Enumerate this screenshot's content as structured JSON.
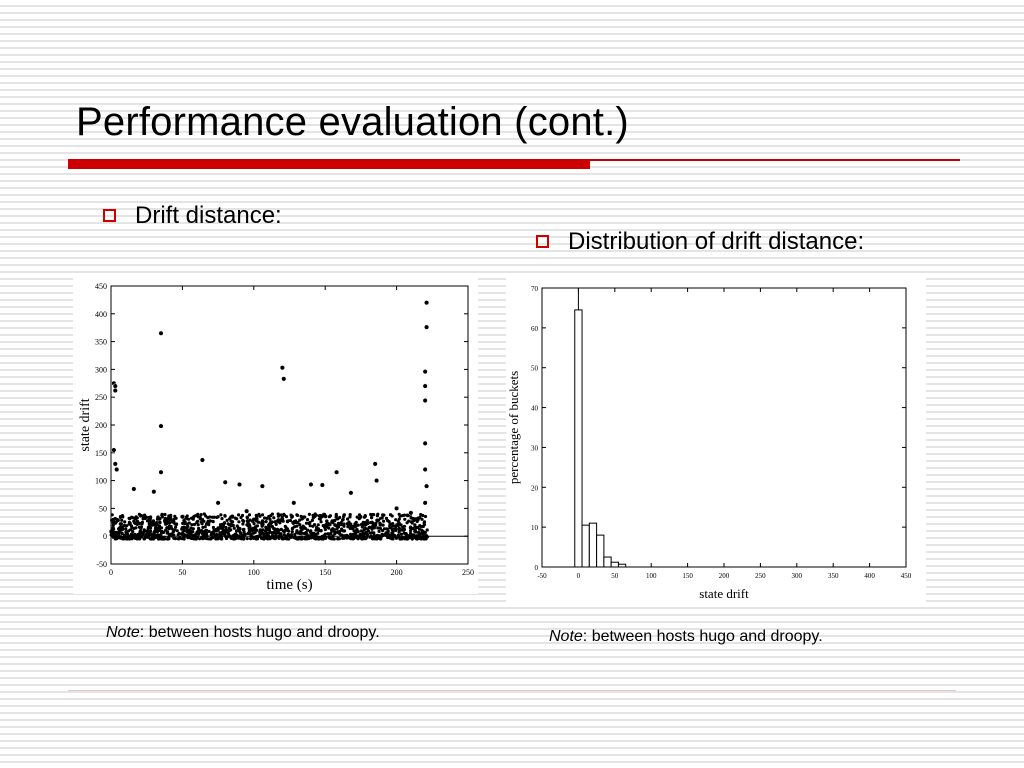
{
  "slide": {
    "title": "Performance evaluation (cont.)",
    "accent_color": "#cc0000",
    "bullets": [
      {
        "text": "Drift distance:"
      },
      {
        "text": "Distribution of drift distance:"
      }
    ],
    "notes": [
      {
        "label": "Note",
        "text": ": between hosts hugo and droopy."
      },
      {
        "label": "Note",
        "text": ": between hosts hugo and droopy."
      }
    ]
  },
  "chart_data": [
    {
      "type": "scatter",
      "xlabel": "time (s)",
      "ylabel": "state drift",
      "xlim": [
        0,
        250
      ],
      "ylim": [
        -50,
        450
      ],
      "xticks": [
        0,
        50,
        100,
        150,
        200,
        250
      ],
      "yticks": [
        -50,
        0,
        50,
        100,
        150,
        200,
        250,
        300,
        350,
        400,
        450
      ],
      "outliers": [
        {
          "x": 2,
          "y": 275
        },
        {
          "x": 3,
          "y": 270
        },
        {
          "x": 3,
          "y": 262
        },
        {
          "x": 2,
          "y": 155
        },
        {
          "x": 3,
          "y": 130
        },
        {
          "x": 4,
          "y": 120
        },
        {
          "x": 35,
          "y": 365
        },
        {
          "x": 35,
          "y": 198
        },
        {
          "x": 35,
          "y": 115
        },
        {
          "x": 64,
          "y": 137
        },
        {
          "x": 120,
          "y": 303
        },
        {
          "x": 121,
          "y": 283
        },
        {
          "x": 185,
          "y": 130
        },
        {
          "x": 186,
          "y": 100
        },
        {
          "x": 221,
          "y": 420
        },
        {
          "x": 221,
          "y": 376
        },
        {
          "x": 220,
          "y": 296
        },
        {
          "x": 220,
          "y": 270
        },
        {
          "x": 220,
          "y": 244
        },
        {
          "x": 220,
          "y": 167
        },
        {
          "x": 220,
          "y": 120
        },
        {
          "x": 221,
          "y": 90
        },
        {
          "x": 220,
          "y": 60
        },
        {
          "x": 16,
          "y": 85
        },
        {
          "x": 30,
          "y": 80
        },
        {
          "x": 80,
          "y": 97
        },
        {
          "x": 90,
          "y": 93
        },
        {
          "x": 106,
          "y": 90
        },
        {
          "x": 140,
          "y": 93
        },
        {
          "x": 148,
          "y": 92
        },
        {
          "x": 158,
          "y": 115
        },
        {
          "x": 168,
          "y": 78
        },
        {
          "x": 128,
          "y": 60
        },
        {
          "x": 200,
          "y": 50
        },
        {
          "x": 210,
          "y": 42
        },
        {
          "x": 50,
          "y": 35
        },
        {
          "x": 75,
          "y": 60
        },
        {
          "x": 95,
          "y": 45
        }
      ],
      "dense_band": {
        "x_range": [
          0,
          222
        ],
        "y_range": [
          -5,
          40
        ]
      }
    },
    {
      "type": "bar",
      "xlabel": "state drift",
      "ylabel": "percentage of buckets",
      "xlim": [
        -50,
        450
      ],
      "ylim": [
        0,
        70
      ],
      "xticks": [
        -50,
        0,
        50,
        100,
        150,
        200,
        250,
        300,
        350,
        400,
        450
      ],
      "yticks": [
        0,
        10,
        20,
        30,
        40,
        50,
        60,
        70
      ],
      "bin_width": 10,
      "bins": [
        -5,
        5,
        15,
        25,
        35,
        45,
        55
      ],
      "values": [
        64.5,
        10.5,
        11,
        8,
        2.5,
        1.2,
        0.7
      ]
    }
  ]
}
